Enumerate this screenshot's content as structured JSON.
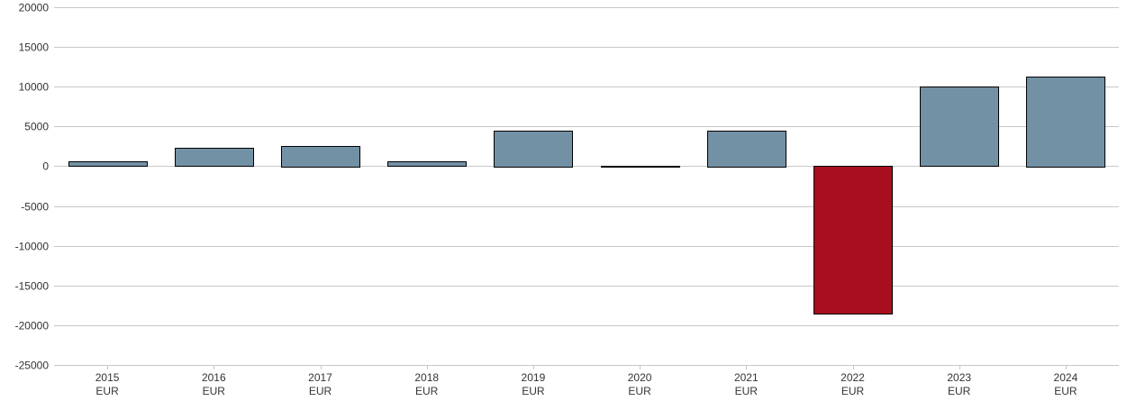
{
  "chart_data": {
    "type": "bar",
    "title": "",
    "xlabel": "",
    "ylabel": "",
    "ylim": [
      -25000,
      20000
    ],
    "yticks": [
      20000,
      15000,
      10000,
      5000,
      0,
      -5000,
      -10000,
      -15000,
      -20000,
      -25000
    ],
    "grid": true,
    "legend": "none",
    "categories": [
      "2015",
      "2016",
      "2017",
      "2018",
      "2019",
      "2020",
      "2021",
      "2022",
      "2023",
      "2024"
    ],
    "category_sublabels": [
      "EUR",
      "EUR",
      "EUR",
      "EUR",
      "EUR",
      "EUR",
      "EUR",
      "EUR",
      "EUR",
      "EUR"
    ],
    "values": [
      600,
      2300,
      2600,
      600,
      4500,
      100,
      4500,
      -18600,
      10000,
      11300
    ],
    "colors": {
      "positive": "#7391a5",
      "negative": "#a90e1f",
      "bar_outline": "#000000",
      "grid": "#c8c8c8",
      "text": "#333333"
    }
  }
}
